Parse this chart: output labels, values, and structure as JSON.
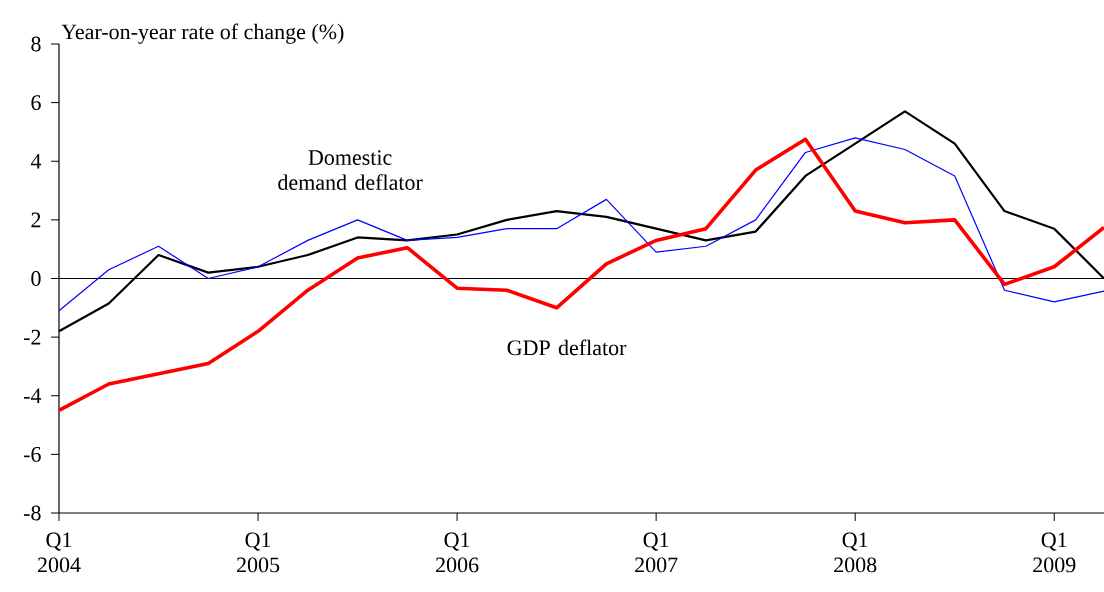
{
  "chart_data": {
    "type": "line",
    "ylabel": "Year-on-year rate of change (%)",
    "categories": [
      "Q1 2004",
      null,
      null,
      null,
      "Q1 2005",
      null,
      null,
      null,
      "Q1 2006",
      null,
      null,
      null,
      "Q1 2007",
      null,
      null,
      null,
      "Q1 2008",
      null,
      null,
      null,
      "Q1 2009",
      null
    ],
    "series": [
      {
        "name": "Domestic demand deflator",
        "color": "#000000",
        "values": [
          -1.8,
          -0.85,
          0.8,
          0.2,
          0.4,
          0.8,
          1.4,
          1.3,
          1.5,
          2.0,
          2.3,
          2.1,
          1.7,
          1.3,
          1.6,
          3.5,
          4.6,
          5.7,
          4.6,
          2.3,
          1.7,
          0.0
        ]
      },
      {
        "color": "#0000ff",
        "values": [
          -1.1,
          0.3,
          1.1,
          0.0,
          0.4,
          1.3,
          2.0,
          1.3,
          1.4,
          1.7,
          1.7,
          2.7,
          0.9,
          1.1,
          2.0,
          4.3,
          4.8,
          4.4,
          3.5,
          -0.4,
          -0.8,
          -0.43
        ]
      },
      {
        "name": "GDP deflator",
        "color": "#ff0000",
        "values": [
          -4.5,
          -3.6,
          -3.25,
          -2.9,
          -1.8,
          -0.4,
          0.7,
          1.05,
          -0.33,
          -0.4,
          -1.0,
          0.5,
          1.3,
          1.7,
          3.7,
          4.75,
          2.3,
          1.9,
          2.0,
          -0.2,
          0.4,
          1.74
        ]
      }
    ],
    "ylim": [
      -8,
      8
    ],
    "yticks": [
      -8,
      -6,
      -4,
      -2,
      0,
      2,
      4,
      6,
      8
    ],
    "ref_lines": [
      {
        "axis": "y",
        "value": 0,
        "color": "#000000"
      }
    ],
    "grid": false,
    "marker": "none",
    "line_style": "solid"
  }
}
